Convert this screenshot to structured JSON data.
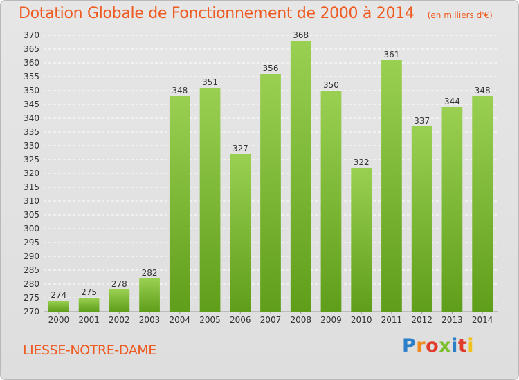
{
  "header": {
    "title": "Dotation Globale de Fonctionnement de 2000 à 2014",
    "unit": "(en milliers d'€)"
  },
  "footer": {
    "commune": "LIESSE-NOTRE-DAME",
    "logo_text": "Proxiti"
  },
  "colors": {
    "accent": "#ee5a1f",
    "bar_top": "#9ad052",
    "bar_bottom": "#5f9e1a",
    "background": "#e3e3e3",
    "grid": "#ffffff"
  },
  "chart_data": {
    "type": "bar",
    "title": "Dotation Globale de Fonctionnement de 2000 à 2014",
    "subtitle": "(en milliers d'€)",
    "xlabel": "",
    "ylabel": "",
    "categories": [
      "2000",
      "2001",
      "2002",
      "2003",
      "2004",
      "2005",
      "2006",
      "2007",
      "2008",
      "2009",
      "2010",
      "2011",
      "2012",
      "2013",
      "2014"
    ],
    "values": [
      274,
      275,
      278,
      282,
      348,
      351,
      327,
      356,
      368,
      350,
      322,
      361,
      337,
      344,
      348
    ],
    "ylim": [
      270,
      370
    ],
    "yticks": [
      270,
      275,
      280,
      285,
      290,
      295,
      300,
      305,
      310,
      315,
      320,
      325,
      330,
      335,
      340,
      345,
      350,
      355,
      360,
      365,
      370
    ],
    "grid": "dashed horizontal",
    "legend": "none"
  }
}
